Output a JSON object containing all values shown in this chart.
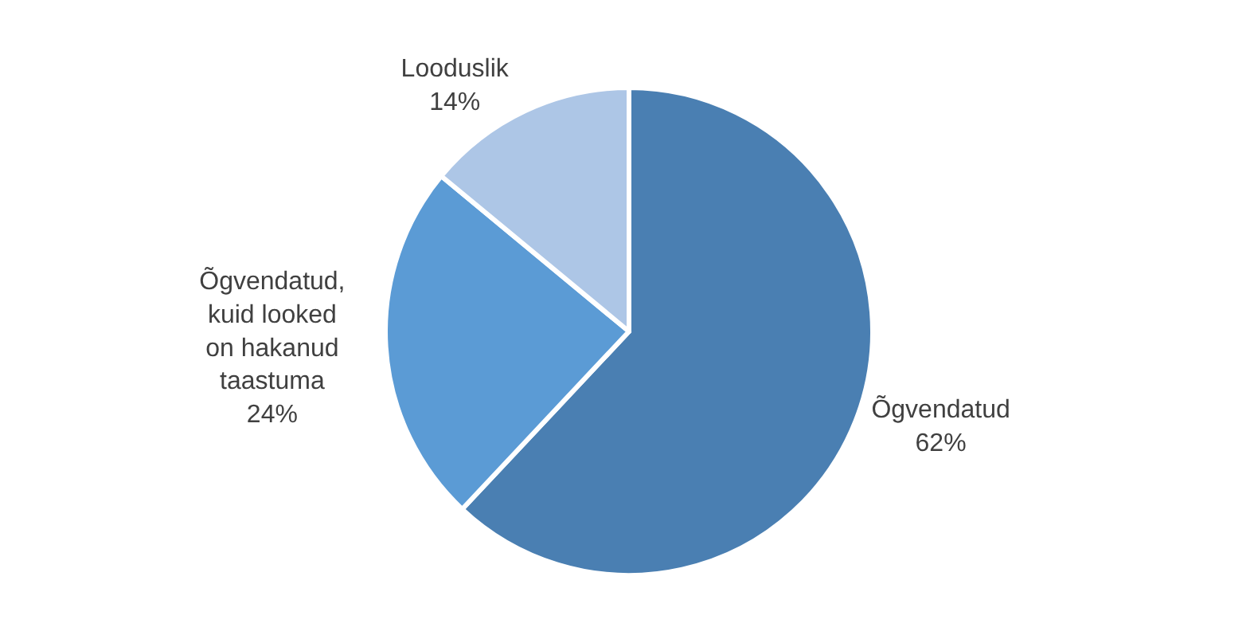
{
  "chart_data": {
    "type": "pie",
    "categories": [
      "Õgvendatud",
      "Õgvendatud, kuid looked on hakanud taastuma",
      "Looduslik"
    ],
    "values": [
      62,
      24,
      14
    ],
    "value_labels": [
      "62%",
      "24%",
      "14%"
    ],
    "colors": [
      "#4a7fb2",
      "#5b9bd5",
      "#adc6e6"
    ],
    "legend": false
  }
}
